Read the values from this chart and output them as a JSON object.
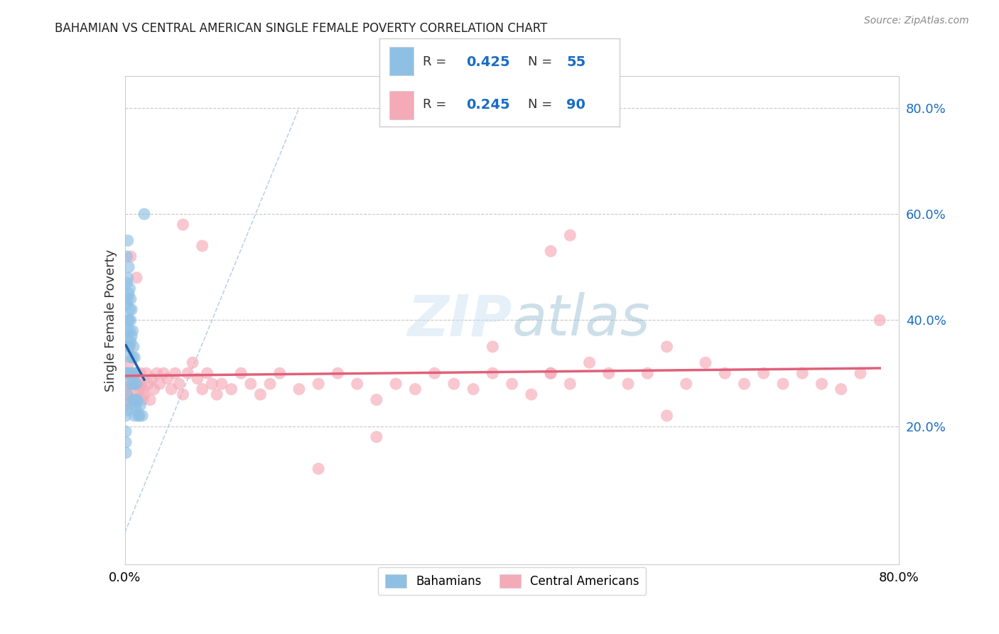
{
  "title": "BAHAMIAN VS CENTRAL AMERICAN SINGLE FEMALE POVERTY CORRELATION CHART",
  "source": "Source: ZipAtlas.com",
  "ylabel": "Single Female Poverty",
  "right_yticks": [
    0.2,
    0.4,
    0.6,
    0.8
  ],
  "right_ytick_labels": [
    "20.0%",
    "40.0%",
    "60.0%",
    "80.0%"
  ],
  "bahamian_R": 0.425,
  "bahamian_N": 55,
  "central_american_R": 0.245,
  "central_american_N": 90,
  "blue_color": "#8ec0e4",
  "blue_line_color": "#1f5fa6",
  "pink_color": "#f5aab8",
  "pink_line_color": "#e0607a",
  "background_color": "#ffffff",
  "grid_color": "#c8c8c8",
  "xlim": [
    0.0,
    0.8
  ],
  "ylim": [
    -0.06,
    0.86
  ],
  "bahamian_x": [
    0.001,
    0.001,
    0.001,
    0.001,
    0.001,
    0.002,
    0.002,
    0.002,
    0.002,
    0.002,
    0.002,
    0.002,
    0.002,
    0.003,
    0.003,
    0.003,
    0.003,
    0.003,
    0.003,
    0.004,
    0.004,
    0.004,
    0.004,
    0.004,
    0.005,
    0.005,
    0.005,
    0.005,
    0.006,
    0.006,
    0.006,
    0.006,
    0.007,
    0.007,
    0.007,
    0.008,
    0.008,
    0.008,
    0.009,
    0.009,
    0.009,
    0.01,
    0.01,
    0.01,
    0.01,
    0.011,
    0.011,
    0.012,
    0.012,
    0.013,
    0.014,
    0.015,
    0.016,
    0.018,
    0.02
  ],
  "bahamian_y": [
    0.24,
    0.22,
    0.19,
    0.17,
    0.15,
    0.52,
    0.47,
    0.43,
    0.38,
    0.35,
    0.3,
    0.26,
    0.23,
    0.55,
    0.48,
    0.44,
    0.4,
    0.36,
    0.3,
    0.5,
    0.45,
    0.4,
    0.35,
    0.3,
    0.46,
    0.42,
    0.38,
    0.33,
    0.44,
    0.4,
    0.36,
    0.28,
    0.42,
    0.37,
    0.3,
    0.38,
    0.33,
    0.28,
    0.35,
    0.3,
    0.25,
    0.33,
    0.28,
    0.25,
    0.22,
    0.3,
    0.24,
    0.28,
    0.23,
    0.25,
    0.22,
    0.22,
    0.24,
    0.22,
    0.6
  ],
  "central_american_x": [
    0.001,
    0.002,
    0.002,
    0.003,
    0.003,
    0.004,
    0.004,
    0.005,
    0.006,
    0.007,
    0.008,
    0.009,
    0.01,
    0.011,
    0.012,
    0.013,
    0.014,
    0.015,
    0.016,
    0.017,
    0.018,
    0.019,
    0.02,
    0.022,
    0.024,
    0.026,
    0.028,
    0.03,
    0.033,
    0.036,
    0.04,
    0.044,
    0.048,
    0.052,
    0.056,
    0.06,
    0.065,
    0.07,
    0.075,
    0.08,
    0.085,
    0.09,
    0.095,
    0.1,
    0.11,
    0.12,
    0.13,
    0.14,
    0.15,
    0.16,
    0.18,
    0.2,
    0.22,
    0.24,
    0.26,
    0.28,
    0.3,
    0.32,
    0.34,
    0.36,
    0.38,
    0.4,
    0.42,
    0.44,
    0.46,
    0.48,
    0.5,
    0.52,
    0.54,
    0.56,
    0.58,
    0.6,
    0.62,
    0.64,
    0.66,
    0.68,
    0.7,
    0.72,
    0.74,
    0.76,
    0.44,
    0.46,
    0.06,
    0.08,
    0.38,
    0.44,
    0.26,
    0.2,
    0.56,
    0.78
  ],
  "central_american_y": [
    0.27,
    0.3,
    0.25,
    0.28,
    0.26,
    0.32,
    0.24,
    0.35,
    0.52,
    0.3,
    0.25,
    0.28,
    0.27,
    0.3,
    0.48,
    0.25,
    0.28,
    0.27,
    0.3,
    0.28,
    0.25,
    0.27,
    0.26,
    0.3,
    0.28,
    0.25,
    0.29,
    0.27,
    0.3,
    0.28,
    0.3,
    0.29,
    0.27,
    0.3,
    0.28,
    0.26,
    0.3,
    0.32,
    0.29,
    0.27,
    0.3,
    0.28,
    0.26,
    0.28,
    0.27,
    0.3,
    0.28,
    0.26,
    0.28,
    0.3,
    0.27,
    0.28,
    0.3,
    0.28,
    0.25,
    0.28,
    0.27,
    0.3,
    0.28,
    0.27,
    0.3,
    0.28,
    0.26,
    0.3,
    0.28,
    0.32,
    0.3,
    0.28,
    0.3,
    0.35,
    0.28,
    0.32,
    0.3,
    0.28,
    0.3,
    0.28,
    0.3,
    0.28,
    0.27,
    0.3,
    0.53,
    0.56,
    0.58,
    0.54,
    0.35,
    0.3,
    0.18,
    0.12,
    0.22,
    0.4
  ]
}
